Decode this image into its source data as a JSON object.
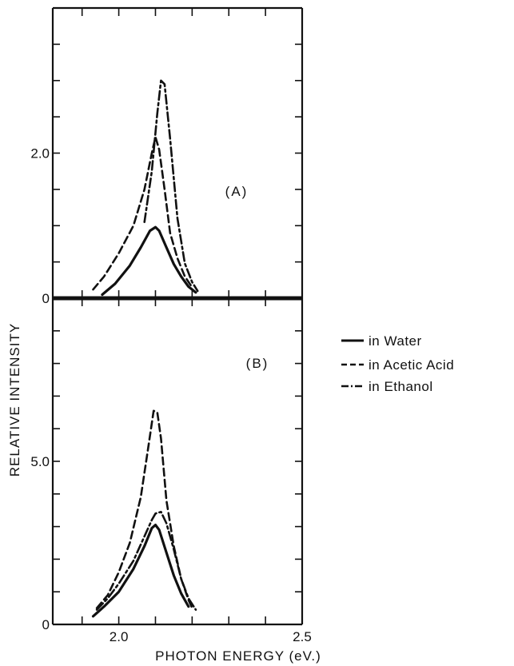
{
  "chart_data": {
    "type": "line",
    "xlabel": "PHOTON ENERGY (eV.)",
    "ylabel": "RELATIVE INTENSITY",
    "xlim": [
      1.82,
      2.5
    ],
    "x_ticks": [
      1.9,
      2.0,
      2.1,
      2.2,
      2.3,
      2.4,
      2.5
    ],
    "x_tick_labels": [
      "2.0",
      "2.5"
    ],
    "x_tick_label_values": [
      2.0,
      2.5
    ],
    "grid": false,
    "legend_position": "right",
    "legend": [
      {
        "label": "in Water",
        "style": "solid"
      },
      {
        "label": "in Acetic Acid",
        "style": "dashed"
      },
      {
        "label": "in Ethanol",
        "style": "dashdot"
      }
    ],
    "panels": [
      {
        "label": "(A)",
        "ylim": [
          0,
          4.0
        ],
        "y_ticks": [
          0,
          0.5,
          1.0,
          1.5,
          2.0,
          2.5,
          3.0,
          3.5
        ],
        "y_tick_labels": [
          "0",
          "2.0"
        ],
        "y_tick_label_values": [
          0,
          2.0
        ],
        "series": [
          {
            "style": "solid",
            "x": [
              1.955,
              1.99,
              2.03,
              2.06,
              2.085,
              2.1,
              2.11,
              2.13,
              2.15,
              2.17,
              2.19,
              2.21
            ],
            "y": [
              0.05,
              0.2,
              0.45,
              0.7,
              0.93,
              0.98,
              0.93,
              0.7,
              0.47,
              0.3,
              0.16,
              0.08
            ]
          },
          {
            "style": "dashed",
            "x": [
              1.93,
              1.96,
              2.0,
              2.04,
              2.07,
              2.09,
              2.1,
              2.11,
              2.125,
              2.14,
              2.16,
              2.18,
              2.2
            ],
            "y": [
              0.12,
              0.3,
              0.62,
              1.0,
              1.5,
              2.0,
              2.22,
              2.05,
              1.5,
              0.9,
              0.55,
              0.3,
              0.15
            ]
          },
          {
            "style": "dashdot",
            "x": [
              2.07,
              2.09,
              2.105,
              2.115,
              2.125,
              2.14,
              2.16,
              2.18,
              2.2,
              2.215
            ],
            "y": [
              1.05,
              1.75,
              2.55,
              3.0,
              2.95,
              2.2,
              1.1,
              0.48,
              0.22,
              0.1
            ]
          }
        ]
      },
      {
        "label": "(B)",
        "ylim": [
          0,
          10.0
        ],
        "y_ticks": [
          0,
          1,
          2,
          3,
          4,
          5,
          6,
          7,
          8,
          9
        ],
        "y_tick_labels": [
          "0",
          "5.0"
        ],
        "y_tick_label_values": [
          0,
          5.0
        ],
        "series": [
          {
            "style": "solid",
            "x": [
              1.93,
              1.96,
              2.0,
              2.04,
              2.07,
              2.09,
              2.1,
              2.11,
              2.13,
              2.15,
              2.17,
              2.19
            ],
            "y": [
              0.25,
              0.55,
              1.0,
              1.7,
              2.4,
              2.95,
              3.05,
              2.9,
              2.2,
              1.5,
              0.95,
              0.55
            ]
          },
          {
            "style": "dashed",
            "x": [
              1.94,
              1.97,
              2.0,
              2.03,
              2.06,
              2.08,
              2.095,
              2.105,
              2.115,
              2.13,
              2.15,
              2.17,
              2.19,
              2.2
            ],
            "y": [
              0.5,
              0.9,
              1.6,
              2.5,
              3.9,
              5.4,
              6.55,
              6.5,
              5.7,
              3.8,
              2.4,
              1.4,
              0.75,
              0.5
            ]
          },
          {
            "style": "dashdot",
            "x": [
              1.94,
              1.97,
              2.0,
              2.04,
              2.07,
              2.09,
              2.1,
              2.115,
              2.13,
              2.15,
              2.17,
              2.19,
              2.21
            ],
            "y": [
              0.45,
              0.8,
              1.25,
              1.95,
              2.7,
              3.2,
              3.4,
              3.45,
              3.1,
              2.3,
              1.4,
              0.8,
              0.45
            ]
          }
        ]
      }
    ]
  }
}
